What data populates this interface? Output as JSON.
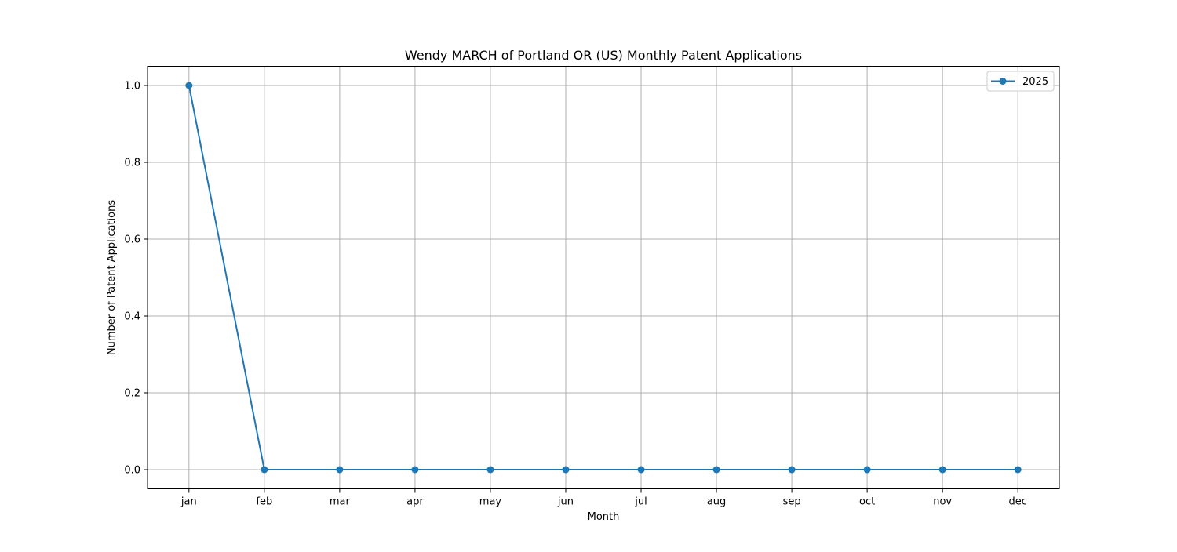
{
  "chart_data": {
    "type": "line",
    "title": "Wendy MARCH of Portland OR (US) Monthly Patent Applications",
    "xlabel": "Month",
    "ylabel": "Number of Patent Applications",
    "categories": [
      "jan",
      "feb",
      "mar",
      "apr",
      "may",
      "jun",
      "jul",
      "aug",
      "sep",
      "oct",
      "nov",
      "dec"
    ],
    "series": [
      {
        "name": "2025",
        "values": [
          1,
          0,
          0,
          0,
          0,
          0,
          0,
          0,
          0,
          0,
          0,
          0
        ],
        "color": "#1f77b4",
        "marker": "circle"
      }
    ],
    "ylim": [
      -0.05,
      1.05
    ],
    "yticks": [
      0.0,
      0.2,
      0.4,
      0.6,
      0.8,
      1.0
    ],
    "ytick_labels": [
      "0.0",
      "0.2",
      "0.4",
      "0.6",
      "0.8",
      "1.0"
    ],
    "grid": true,
    "legend_position": "top-right"
  }
}
